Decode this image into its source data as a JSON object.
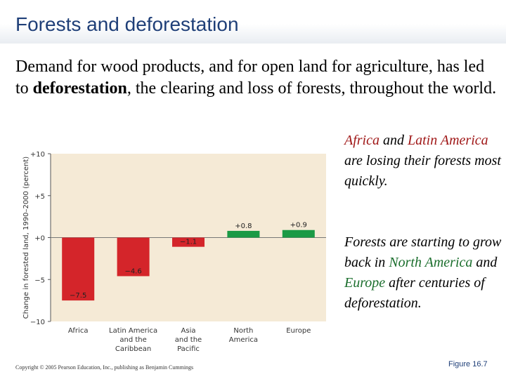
{
  "slide": {
    "title": "Forests and deforestation",
    "intro_before": "Demand for wood products, and for open land for agriculture, has led to ",
    "intro_bold": "deforestation",
    "intro_after": ", the clearing and loss of forests, throughout the world.",
    "note1": {
      "africa": "Africa",
      "and1": " and ",
      "latin_america": "Latin America",
      "rest": " are losing their forests most quickly."
    },
    "note2": {
      "start": "Forests are starting to grow back in ",
      "north_america": "North America",
      "and": " and ",
      "europe": "Europe",
      "rest": " after centuries of deforestation."
    },
    "copyright": "Copyright © 2005 Pearson Education, Inc., publishing as Benjamin Cummings",
    "figure_label": "Figure 16.7"
  },
  "colors": {
    "loss_bar": "#d4252a",
    "gain_bar": "#1a9a45",
    "chart_background": "#f5ead6",
    "title": "#1f3f78",
    "red_text": "#a01818",
    "green_text": "#1b6e2d"
  },
  "chart_data": {
    "type": "bar",
    "ylabel": "Change in forested land, 1990–2000 (percent)",
    "xlabel": "",
    "ylim": [
      -10,
      10
    ],
    "yticks": [
      10,
      5,
      0,
      -5,
      -10
    ],
    "ytick_labels": [
      "+10",
      "+5",
      "+0",
      "−5",
      "−10"
    ],
    "categories": [
      "Africa",
      "Latin America and the Caribbean",
      "Asia and the Pacific",
      "North America",
      "Europe"
    ],
    "category_lines": [
      [
        "Africa"
      ],
      [
        "Latin America",
        "and the",
        "Caribbean"
      ],
      [
        "Asia",
        "and the",
        "Pacific"
      ],
      [
        "North",
        "America"
      ],
      [
        "Europe"
      ]
    ],
    "values": [
      -7.5,
      -4.6,
      -1.1,
      0.8,
      0.9
    ],
    "value_labels": [
      "−7.5",
      "−4.6",
      "−1.1",
      "+0.8",
      "+0.9"
    ],
    "grid": false,
    "legend": "none"
  }
}
